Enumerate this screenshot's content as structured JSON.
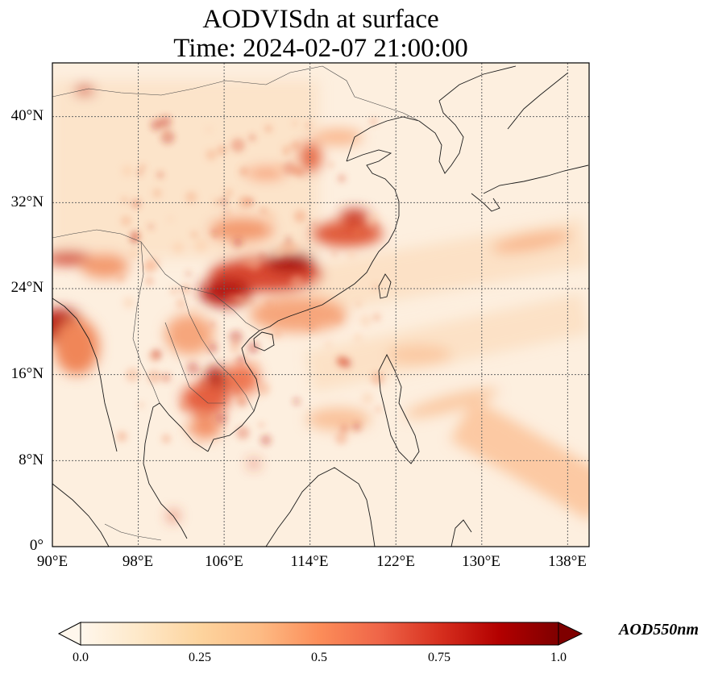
{
  "map": {
    "title_line1": "AODVISdn at surface",
    "title_line2": "Time: 2024-02-07 21:00:00",
    "lat_ticks": [
      "40°N",
      "32°N",
      "24°N",
      "16°N",
      "8°N",
      "0°"
    ],
    "lon_ticks": [
      "90°E",
      "98°E",
      "106°E",
      "114°E",
      "122°E",
      "130°E",
      "138°E"
    ],
    "extent": {
      "lon_min": 90,
      "lon_max": 140,
      "lat_min": 0,
      "lat_max": 45
    },
    "gridlines": true,
    "background_color": "#fdefdf"
  },
  "colorbar": {
    "label": "AOD550nm",
    "ticks": [
      "0.0",
      "0.25",
      "0.5",
      "0.75",
      "1.0"
    ],
    "range": [
      0.0,
      1.0
    ],
    "colormap": "OrRd",
    "colors": [
      "#fff7ec",
      "#fee8c8",
      "#fdd49e",
      "#fdbb84",
      "#fc8d59",
      "#ef6548",
      "#d7301f",
      "#b30000",
      "#7f0000"
    ],
    "extend": "both"
  }
}
